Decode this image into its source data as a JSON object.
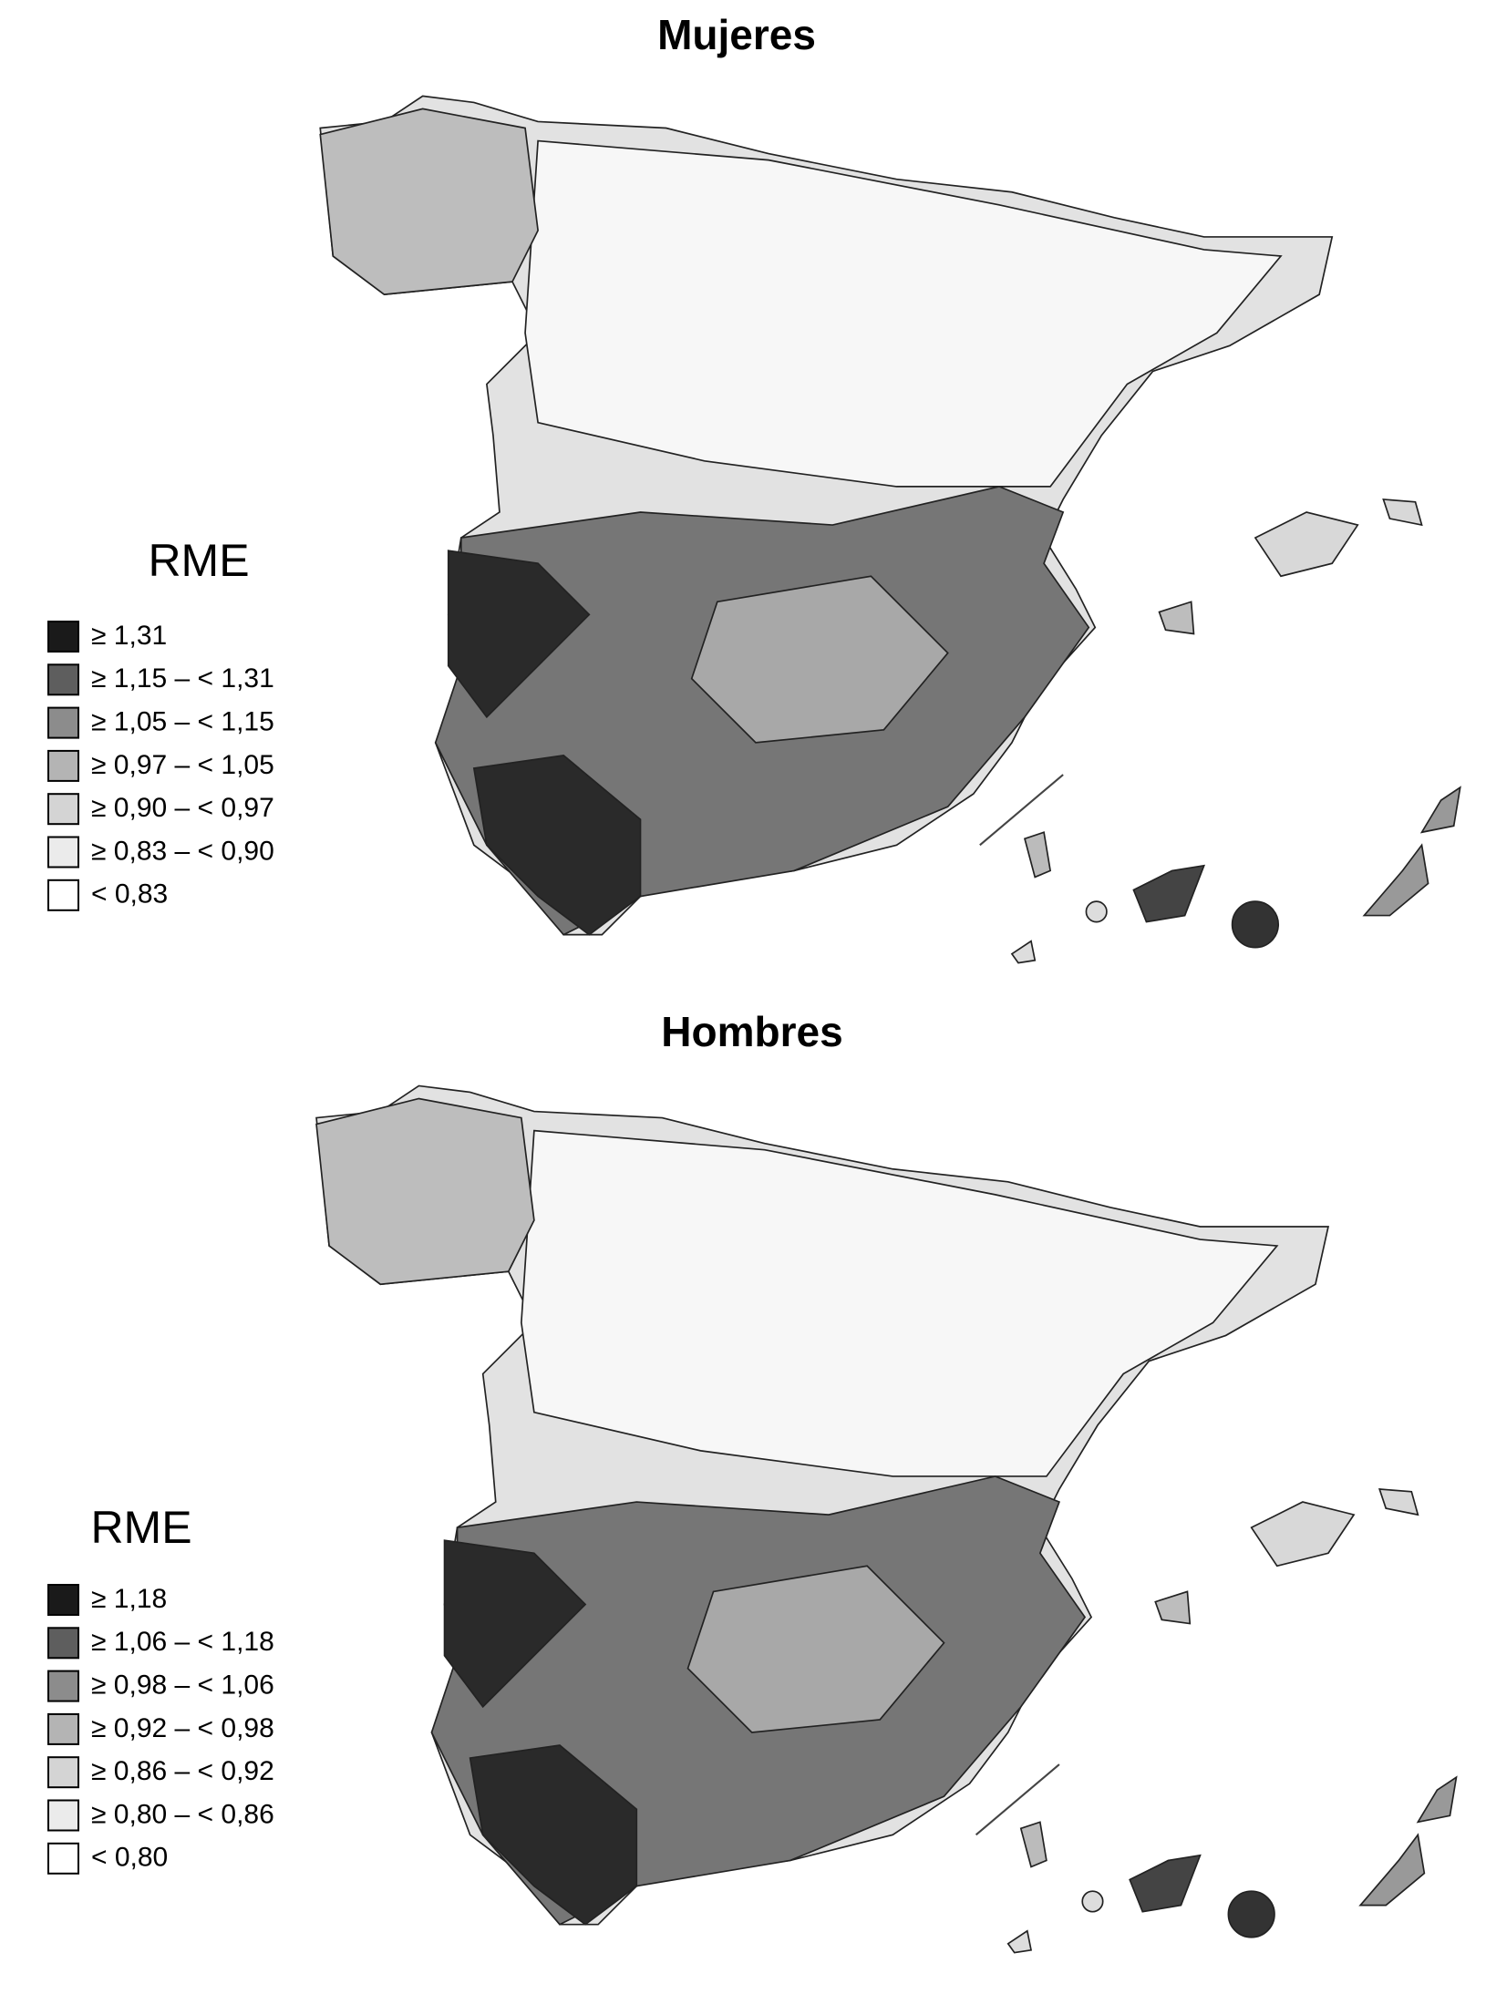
{
  "maps": [
    {
      "title": "Mujeres",
      "legend": {
        "title": "RME",
        "items": [
          {
            "label": "≥ 1,31",
            "color": "#1a1a1a"
          },
          {
            "label": "≥ 1,15 – < 1,31",
            "color": "#5e5e5e"
          },
          {
            "label": "≥ 1,05 – < 1,15",
            "color": "#8c8c8c"
          },
          {
            "label": "≥ 0,97 – < 1,05",
            "color": "#b4b4b4"
          },
          {
            "label": "≥ 0,90 – < 0,97",
            "color": "#d4d4d4"
          },
          {
            "label": "≥ 0,83 – < 0,90",
            "color": "#ebebeb"
          },
          {
            "label": "< 0,83",
            "color": "#ffffff"
          }
        ]
      }
    },
    {
      "title": "Hombres",
      "legend": {
        "title": "RME",
        "items": [
          {
            "label": "≥ 1,18",
            "color": "#1a1a1a"
          },
          {
            "label": "≥ 1,06 – < 1,18",
            "color": "#5e5e5e"
          },
          {
            "label": "≥ 0,98 – < 1,06",
            "color": "#8c8c8c"
          },
          {
            "label": "≥ 0,92 – < 0,98",
            "color": "#b4b4b4"
          },
          {
            "label": "≥ 0,86 – < 0,92",
            "color": "#d4d4d4"
          },
          {
            "label": "≥ 0,80 – < 0,86",
            "color": "#ebebeb"
          },
          {
            "label": "< 0,80",
            "color": "#ffffff"
          }
        ]
      }
    }
  ]
}
